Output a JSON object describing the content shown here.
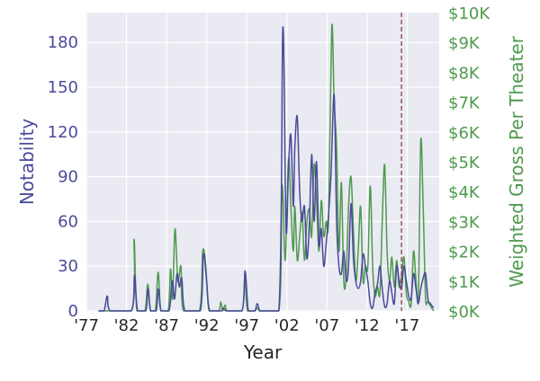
{
  "chart_data": {
    "type": "line",
    "title": "",
    "xlabel": "Year",
    "ylabel_left": "Notability",
    "ylabel_right": "Weighted Gross Per Theater",
    "x_ticks": [
      {
        "value": 1977,
        "label": "'77"
      },
      {
        "value": 1982,
        "label": "'82"
      },
      {
        "value": 1987,
        "label": "'87"
      },
      {
        "value": 1992,
        "label": "'92"
      },
      {
        "value": 1997,
        "label": "'97"
      },
      {
        "value": 2002,
        "label": "'02"
      },
      {
        "value": 2007,
        "label": "'07"
      },
      {
        "value": 2012,
        "label": "'12"
      },
      {
        "value": 2017,
        "label": "'17"
      }
    ],
    "y_left_ticks": [
      {
        "value": 0,
        "label": "0"
      },
      {
        "value": 30,
        "label": "30"
      },
      {
        "value": 60,
        "label": "60"
      },
      {
        "value": 90,
        "label": "90"
      },
      {
        "value": 120,
        "label": "120"
      },
      {
        "value": 150,
        "label": "150"
      },
      {
        "value": 180,
        "label": "180"
      }
    ],
    "y_right_ticks": [
      {
        "value": 0,
        "label": "$0K"
      },
      {
        "value": 1000,
        "label": "$1K"
      },
      {
        "value": 2000,
        "label": "$2K"
      },
      {
        "value": 3000,
        "label": "$3K"
      },
      {
        "value": 4000,
        "label": "$4K"
      },
      {
        "value": 5000,
        "label": "$5K"
      },
      {
        "value": 6000,
        "label": "$6K"
      },
      {
        "value": 7000,
        "label": "$7K"
      },
      {
        "value": 8000,
        "label": "$8K"
      },
      {
        "value": 9000,
        "label": "$9K"
      },
      {
        "value": 10000,
        "label": "$10K"
      }
    ],
    "xlim": [
      1977,
      2021
    ],
    "ylim_left": [
      0,
      200
    ],
    "ylim_right": [
      0,
      10000
    ],
    "grid": true,
    "reference_line": {
      "x": 2016.3,
      "style": "dashed",
      "color": "#8b3a4a"
    },
    "series": [
      {
        "axis": "left",
        "color": "#4a4a9a",
        "points": [
          [
            1978.5,
            0
          ],
          [
            1979.2,
            0
          ],
          [
            1979.6,
            10
          ],
          [
            1980.0,
            0
          ],
          [
            1982.6,
            0
          ],
          [
            1983.0,
            24
          ],
          [
            1983.4,
            0
          ],
          [
            1984.4,
            0
          ],
          [
            1984.7,
            15
          ],
          [
            1985.0,
            0
          ],
          [
            1985.7,
            0
          ],
          [
            1986.0,
            15
          ],
          [
            1986.3,
            0
          ],
          [
            1987.3,
            0
          ],
          [
            1987.7,
            20
          ],
          [
            1988.0,
            8
          ],
          [
            1988.3,
            25
          ],
          [
            1988.6,
            16
          ],
          [
            1988.9,
            22
          ],
          [
            1989.3,
            0
          ],
          [
            1991.2,
            0
          ],
          [
            1991.6,
            38
          ],
          [
            1992.0,
            20
          ],
          [
            1992.4,
            0
          ],
          [
            1993.8,
            0
          ],
          [
            1994.1,
            2
          ],
          [
            1994.5,
            0
          ],
          [
            1996.4,
            0
          ],
          [
            1996.8,
            27
          ],
          [
            1997.2,
            0
          ],
          [
            1998.0,
            0
          ],
          [
            1998.3,
            5
          ],
          [
            1998.6,
            0
          ],
          [
            1998.8,
            0
          ],
          [
            2001.0,
            0
          ],
          [
            2001.5,
            190
          ],
          [
            2001.9,
            55
          ],
          [
            2002.2,
            95
          ],
          [
            2002.5,
            118
          ],
          [
            2002.8,
            70
          ],
          [
            2003.0,
            110
          ],
          [
            2003.3,
            130
          ],
          [
            2003.6,
            80
          ],
          [
            2003.9,
            60
          ],
          [
            2004.2,
            70
          ],
          [
            2004.5,
            35
          ],
          [
            2004.8,
            58
          ],
          [
            2005.1,
            105
          ],
          [
            2005.4,
            60
          ],
          [
            2005.7,
            100
          ],
          [
            2006.0,
            45
          ],
          [
            2006.3,
            55
          ],
          [
            2006.6,
            30
          ],
          [
            2006.9,
            45
          ],
          [
            2007.2,
            65
          ],
          [
            2007.5,
            90
          ],
          [
            2007.9,
            145
          ],
          [
            2008.2,
            60
          ],
          [
            2008.5,
            30
          ],
          [
            2008.8,
            25
          ],
          [
            2009.1,
            40
          ],
          [
            2009.4,
            20
          ],
          [
            2009.7,
            30
          ],
          [
            2010.0,
            72
          ],
          [
            2010.3,
            35
          ],
          [
            2010.6,
            20
          ],
          [
            2010.9,
            15
          ],
          [
            2011.2,
            20
          ],
          [
            2011.5,
            38
          ],
          [
            2011.8,
            30
          ],
          [
            2012.1,
            20
          ],
          [
            2012.4,
            5
          ],
          [
            2012.7,
            2
          ],
          [
            2013.0,
            12
          ],
          [
            2013.3,
            18
          ],
          [
            2013.6,
            30
          ],
          [
            2013.9,
            15
          ],
          [
            2014.2,
            3
          ],
          [
            2014.5,
            5
          ],
          [
            2014.8,
            20
          ],
          [
            2015.1,
            12
          ],
          [
            2015.4,
            5
          ],
          [
            2015.7,
            30
          ],
          [
            2016.0,
            20
          ],
          [
            2016.3,
            15
          ],
          [
            2016.6,
            30
          ],
          [
            2016.9,
            20
          ],
          [
            2017.2,
            10
          ],
          [
            2017.5,
            8
          ],
          [
            2017.8,
            25
          ],
          [
            2018.1,
            15
          ],
          [
            2018.4,
            5
          ],
          [
            2018.7,
            15
          ],
          [
            2019.0,
            22
          ],
          [
            2019.3,
            25
          ],
          [
            2019.6,
            8
          ],
          [
            2019.9,
            5
          ],
          [
            2020.3,
            2
          ]
        ]
      },
      {
        "axis": "right",
        "color": "#4f9a4f",
        "points": [
          [
            1978.5,
            0
          ],
          [
            1982.6,
            0
          ],
          [
            1982.95,
            2400
          ],
          [
            1983.3,
            0
          ],
          [
            1984.3,
            0
          ],
          [
            1984.65,
            900
          ],
          [
            1985.0,
            0
          ],
          [
            1985.6,
            0
          ],
          [
            1985.95,
            1300
          ],
          [
            1986.3,
            0
          ],
          [
            1987.2,
            0
          ],
          [
            1987.5,
            1400
          ],
          [
            1987.75,
            400
          ],
          [
            1988.05,
            2750
          ],
          [
            1988.4,
            1000
          ],
          [
            1988.8,
            1500
          ],
          [
            1989.1,
            0
          ],
          [
            1991.1,
            0
          ],
          [
            1991.5,
            2000
          ],
          [
            1991.9,
            1500
          ],
          [
            1992.3,
            0
          ],
          [
            1993.5,
            0
          ],
          [
            1993.75,
            300
          ],
          [
            1994.0,
            0
          ],
          [
            1994.3,
            200
          ],
          [
            1994.6,
            0
          ],
          [
            1996.4,
            0
          ],
          [
            1996.75,
            1100
          ],
          [
            1997.1,
            0
          ],
          [
            1998.0,
            0
          ],
          [
            1998.3,
            100
          ],
          [
            1998.6,
            0
          ],
          [
            1998.8,
            0
          ],
          [
            2001.0,
            0
          ],
          [
            2001.4,
            4200
          ],
          [
            2001.8,
            1700
          ],
          [
            2002.2,
            5100
          ],
          [
            2002.5,
            3500
          ],
          [
            2002.8,
            2000
          ],
          [
            2003.0,
            3500
          ],
          [
            2003.3,
            1700
          ],
          [
            2003.6,
            2500
          ],
          [
            2003.9,
            3300
          ],
          [
            2004.2,
            1700
          ],
          [
            2004.5,
            3000
          ],
          [
            2004.8,
            3400
          ],
          [
            2005.1,
            2500
          ],
          [
            2005.4,
            4900
          ],
          [
            2005.7,
            3700
          ],
          [
            2006.0,
            2000
          ],
          [
            2006.3,
            3700
          ],
          [
            2006.6,
            2500
          ],
          [
            2006.9,
            3000
          ],
          [
            2007.2,
            3100
          ],
          [
            2007.6,
            9500
          ],
          [
            2007.9,
            7000
          ],
          [
            2008.2,
            5500
          ],
          [
            2008.5,
            2000
          ],
          [
            2008.8,
            4300
          ],
          [
            2009.1,
            1000
          ],
          [
            2009.4,
            1200
          ],
          [
            2009.7,
            3500
          ],
          [
            2010.0,
            4500
          ],
          [
            2010.3,
            2700
          ],
          [
            2010.6,
            1000
          ],
          [
            2010.9,
            2000
          ],
          [
            2011.2,
            3500
          ],
          [
            2011.5,
            1000
          ],
          [
            2011.8,
            1500
          ],
          [
            2012.1,
            1500
          ],
          [
            2012.4,
            4200
          ],
          [
            2012.7,
            1500
          ],
          [
            2013.0,
            500
          ],
          [
            2013.3,
            800
          ],
          [
            2013.6,
            600
          ],
          [
            2013.9,
            3000
          ],
          [
            2014.2,
            4900
          ],
          [
            2014.5,
            2000
          ],
          [
            2014.8,
            1000
          ],
          [
            2015.1,
            1800
          ],
          [
            2015.4,
            800
          ],
          [
            2015.7,
            1700
          ],
          [
            2016.0,
            800
          ],
          [
            2016.3,
            1200
          ],
          [
            2016.6,
            1800
          ],
          [
            2016.9,
            600
          ],
          [
            2017.2,
            300
          ],
          [
            2017.5,
            200
          ],
          [
            2017.8,
            2000
          ],
          [
            2018.1,
            1000
          ],
          [
            2018.4,
            300
          ],
          [
            2018.7,
            5700
          ],
          [
            2019.0,
            3500
          ],
          [
            2019.3,
            400
          ],
          [
            2019.6,
            300
          ],
          [
            2020.3,
            0
          ]
        ]
      }
    ]
  }
}
